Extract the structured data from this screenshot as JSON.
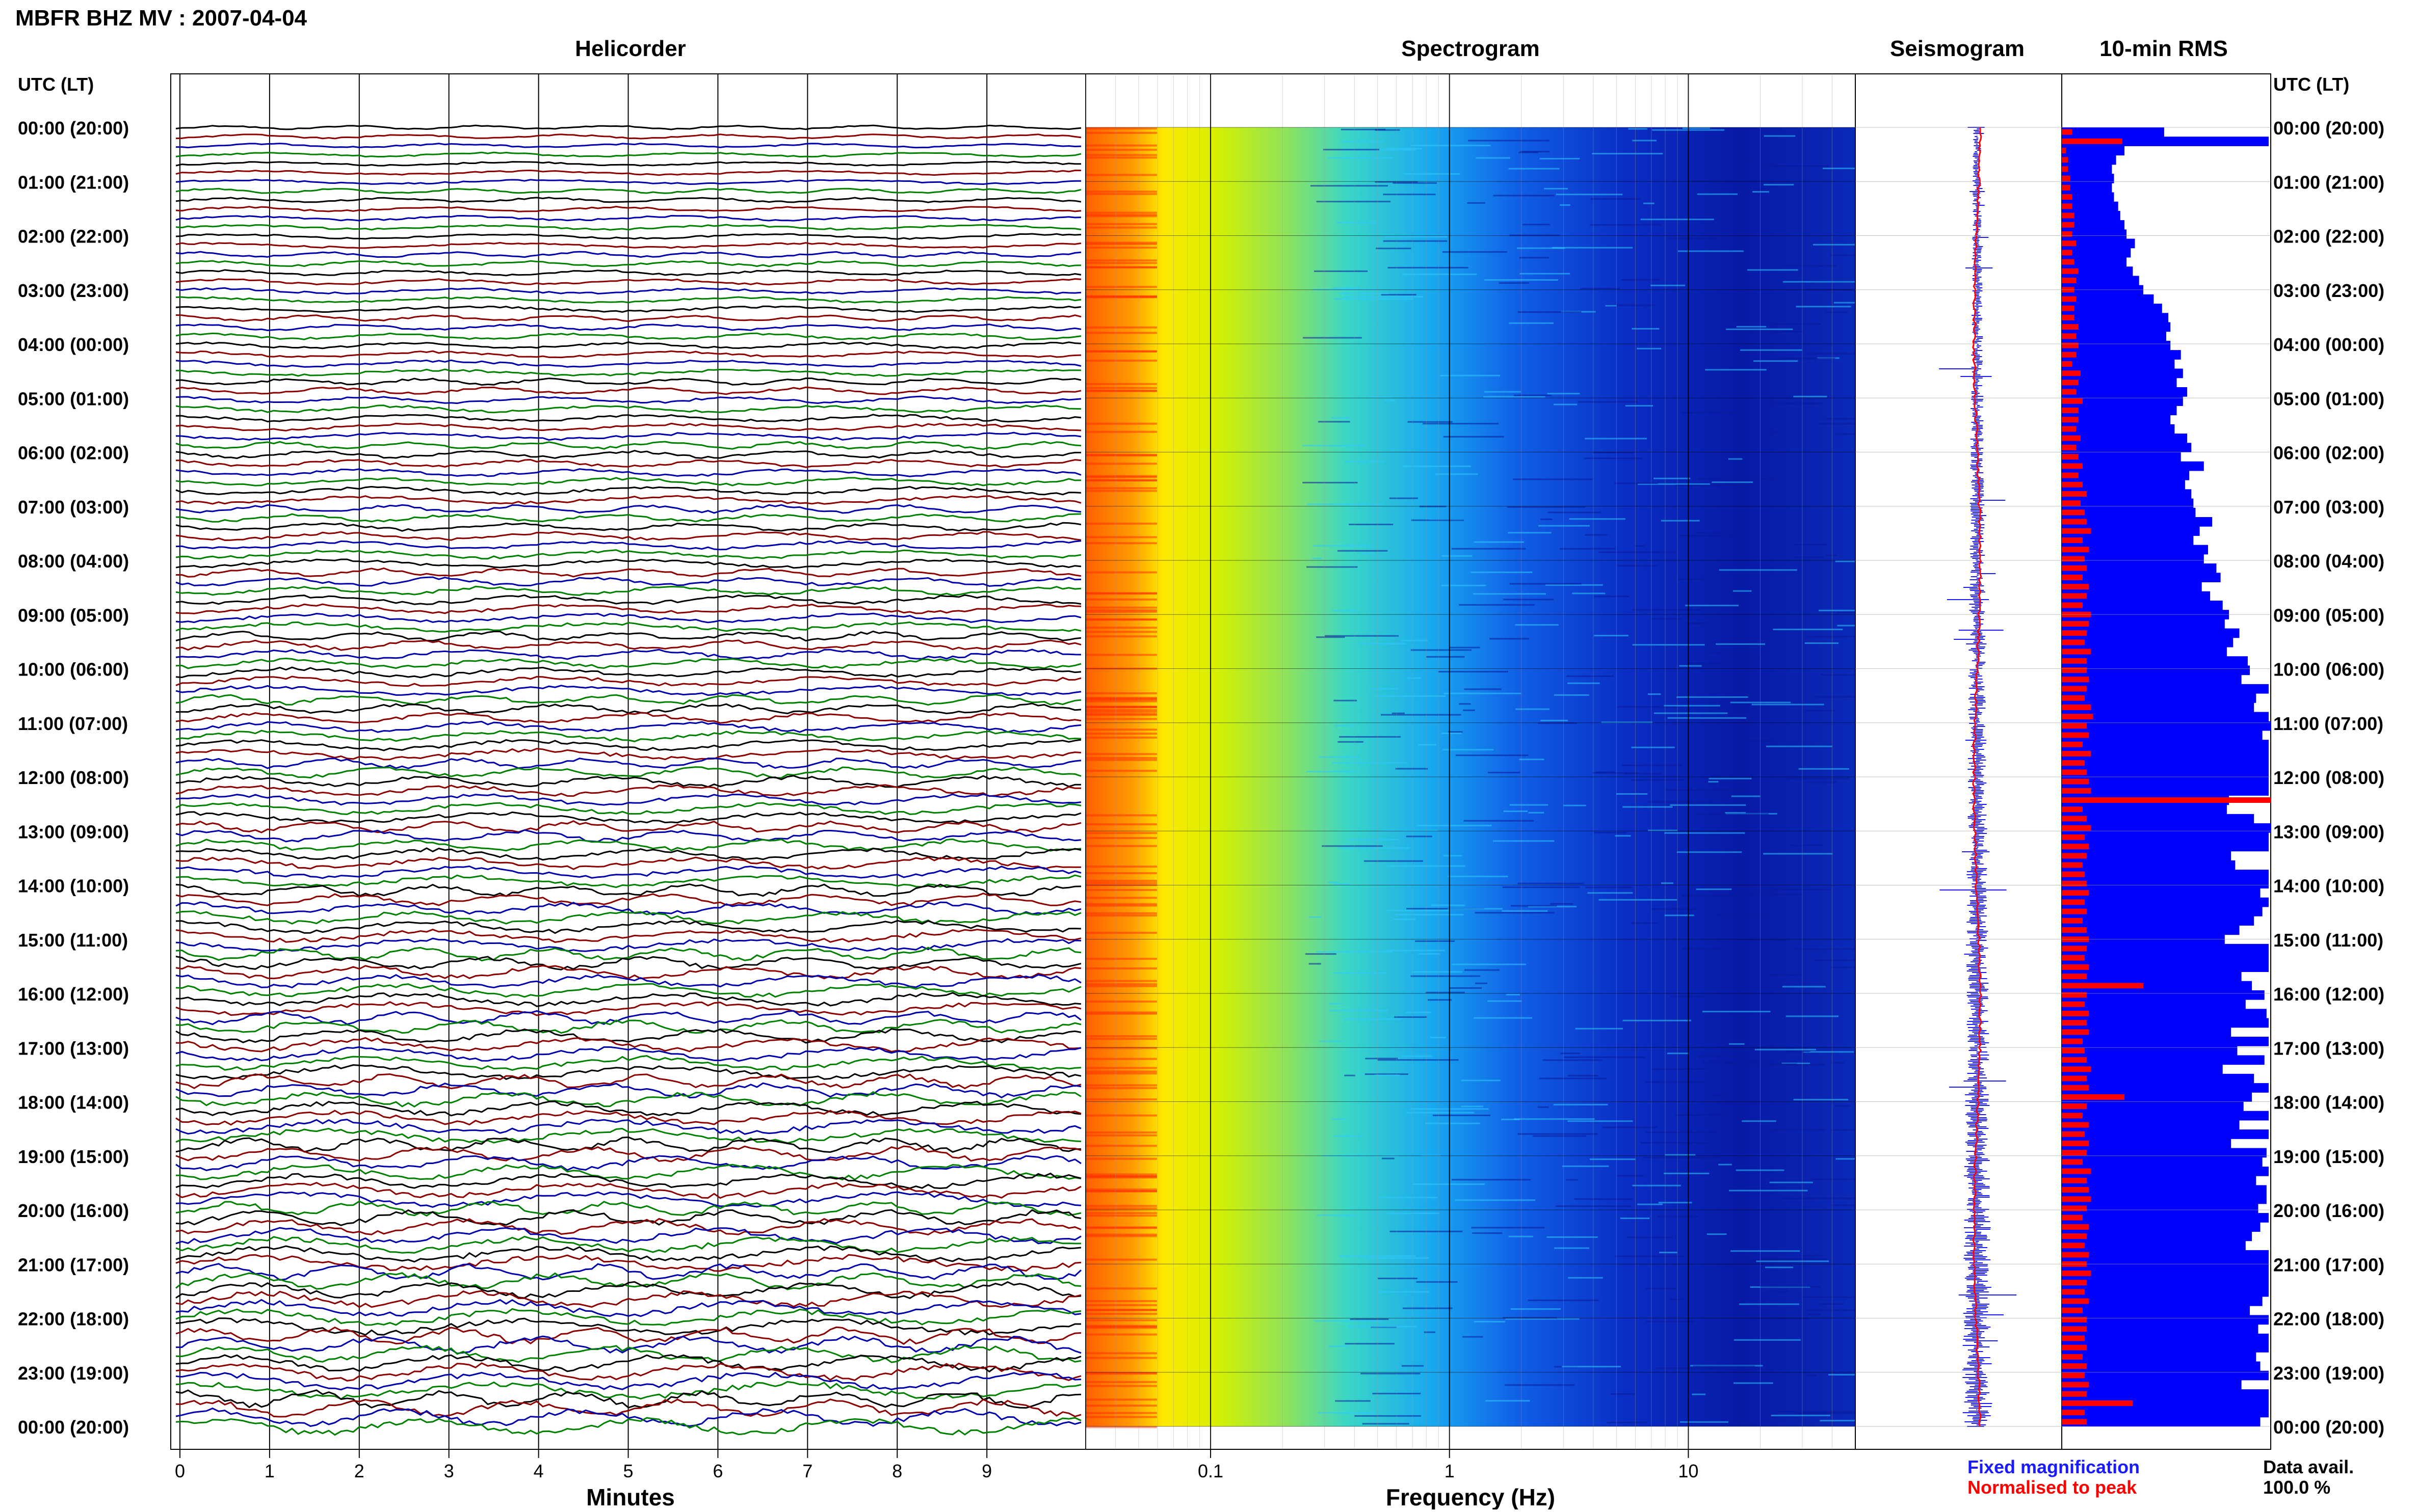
{
  "header": {
    "title": "MBFR BHZ MV : 2007-04-04"
  },
  "panels": {
    "helicorder": "Helicorder",
    "spectrogram": "Spectrogram",
    "seismogram": "Seismogram",
    "rms": "10-min RMS"
  },
  "axis": {
    "utc_header_left": "UTC (LT)",
    "utc_header_right": "UTC (LT)",
    "minutes_label": "Minutes",
    "frequency_label": "Frequency (Hz)",
    "minute_ticks": [
      "0",
      "1",
      "2",
      "3",
      "4",
      "5",
      "6",
      "7",
      "8",
      "9"
    ],
    "frequency_ticks": [
      "0.1",
      "1",
      "10"
    ],
    "hour_labels": [
      "00:00 (20:00)",
      "01:00 (21:00)",
      "02:00 (22:00)",
      "03:00 (23:00)",
      "04:00 (00:00)",
      "05:00 (01:00)",
      "06:00 (02:00)",
      "07:00 (03:00)",
      "08:00 (04:00)",
      "09:00 (05:00)",
      "10:00 (06:00)",
      "11:00 (07:00)",
      "12:00 (08:00)",
      "13:00 (09:00)",
      "14:00 (10:00)",
      "15:00 (11:00)",
      "16:00 (12:00)",
      "17:00 (13:00)",
      "18:00 (14:00)",
      "19:00 (15:00)",
      "20:00 (16:00)",
      "21:00 (17:00)",
      "22:00 (18:00)",
      "23:00 (19:00)",
      "00:00 (20:00)"
    ]
  },
  "legend": {
    "fixed": "Fixed magnification",
    "normalised": "Normalised to peak",
    "fixed_color": "#1a1aff",
    "normalised_color": "#ff0000"
  },
  "data_avail": {
    "label": "Data avail.",
    "value": "100.0 %"
  },
  "colors": {
    "trace_cycle": [
      "#000000",
      "#8b0000",
      "#0000aa",
      "#008000"
    ],
    "rms_fixed": "#0000ff",
    "rms_normalised": "#ff0000"
  },
  "chart_data": {
    "type": "heatmap",
    "station": "MBFR",
    "channel": "BHZ",
    "network": "MV",
    "date": "2007-04-04",
    "helicorder_minutes_range": [
      0,
      10
    ],
    "spectrogram_frequency_range_hz": [
      0.03,
      50
    ],
    "spectrogram_scale": "log",
    "utc_range_hours": [
      0,
      24
    ],
    "rms_10min_fixed_fraction": [
      0.49,
      0.99,
      0.3,
      0.26,
      0.24,
      0.25,
      0.24,
      0.25,
      0.27,
      0.28,
      0.3,
      0.31,
      0.35,
      0.33,
      0.31,
      0.34,
      0.37,
      0.39,
      0.44,
      0.48,
      0.51,
      0.52,
      0.5,
      0.52,
      0.57,
      0.54,
      0.58,
      0.55,
      0.6,
      0.58,
      0.55,
      0.52,
      0.54,
      0.6,
      0.62,
      0.57,
      0.68,
      0.61,
      0.59,
      0.62,
      0.63,
      0.64,
      0.72,
      0.66,
      0.63,
      0.7,
      0.68,
      0.74,
      0.76,
      0.67,
      0.71,
      0.77,
      0.8,
      0.78,
      0.85,
      0.82,
      0.79,
      0.89,
      0.9,
      0.86,
      0.99,
      0.93,
      0.92,
      0.99,
      1.0,
      0.96,
      0.99,
      0.99,
      0.99,
      0.99,
      0.99,
      0.99,
      0.8,
      0.79,
      0.92,
      1.0,
      0.99,
      0.99,
      0.81,
      0.83,
      0.99,
      0.99,
      0.95,
      0.99,
      0.96,
      0.92,
      0.85,
      0.78,
      0.99,
      0.99,
      0.99,
      0.86,
      0.91,
      0.97,
      0.88,
      0.98,
      0.99,
      0.81,
      0.99,
      0.84,
      0.97,
      0.77,
      0.92,
      0.99,
      0.91,
      0.87,
      0.99,
      0.85,
      0.99,
      0.81,
      0.98,
      0.96,
      0.99,
      0.93,
      0.98,
      0.98,
      0.94,
      0.99,
      0.95,
      0.91,
      0.88,
      0.99,
      0.99,
      0.99,
      0.99,
      0.99,
      0.96,
      0.9,
      0.99,
      0.94,
      0.99,
      0.99,
      0.93,
      0.95,
      0.99,
      0.86,
      0.99,
      0.99,
      0.99,
      0.95
    ],
    "rms_10min_normalised_fraction": [
      0.05,
      0.29,
      0.02,
      0.03,
      0.03,
      0.04,
      0.04,
      0.05,
      0.05,
      0.06,
      0.06,
      0.05,
      0.07,
      0.05,
      0.06,
      0.08,
      0.07,
      0.06,
      0.07,
      0.06,
      0.06,
      0.08,
      0.07,
      0.08,
      0.07,
      0.05,
      0.09,
      0.08,
      0.07,
      0.1,
      0.08,
      0.08,
      0.07,
      0.09,
      0.07,
      0.08,
      0.1,
      0.08,
      0.1,
      0.12,
      0.09,
      0.11,
      0.12,
      0.14,
      0.1,
      0.13,
      0.11,
      0.12,
      0.1,
      0.13,
      0.12,
      0.1,
      0.14,
      0.13,
      0.12,
      0.11,
      0.14,
      0.12,
      0.12,
      0.13,
      0.12,
      0.11,
      0.14,
      0.15,
      0.12,
      0.13,
      0.1,
      0.14,
      0.11,
      0.12,
      0.13,
      0.14,
      1.0,
      0.1,
      0.12,
      0.14,
      0.11,
      0.13,
      0.12,
      0.1,
      0.11,
      0.12,
      0.13,
      0.11,
      0.12,
      0.1,
      0.12,
      0.13,
      0.12,
      0.11,
      0.13,
      0.12,
      0.39,
      0.12,
      0.11,
      0.13,
      0.12,
      0.13,
      0.1,
      0.11,
      0.12,
      0.14,
      0.12,
      0.13,
      0.3,
      0.12,
      0.1,
      0.13,
      0.11,
      0.13,
      0.12,
      0.1,
      0.14,
      0.12,
      0.13,
      0.14,
      0.12,
      0.1,
      0.13,
      0.12,
      0.11,
      0.13,
      0.12,
      0.14,
      0.12,
      0.11,
      0.13,
      0.1,
      0.12,
      0.12,
      0.11,
      0.12,
      0.1,
      0.12,
      0.11,
      0.13,
      0.12,
      0.34,
      0.11,
      0.12
    ]
  }
}
